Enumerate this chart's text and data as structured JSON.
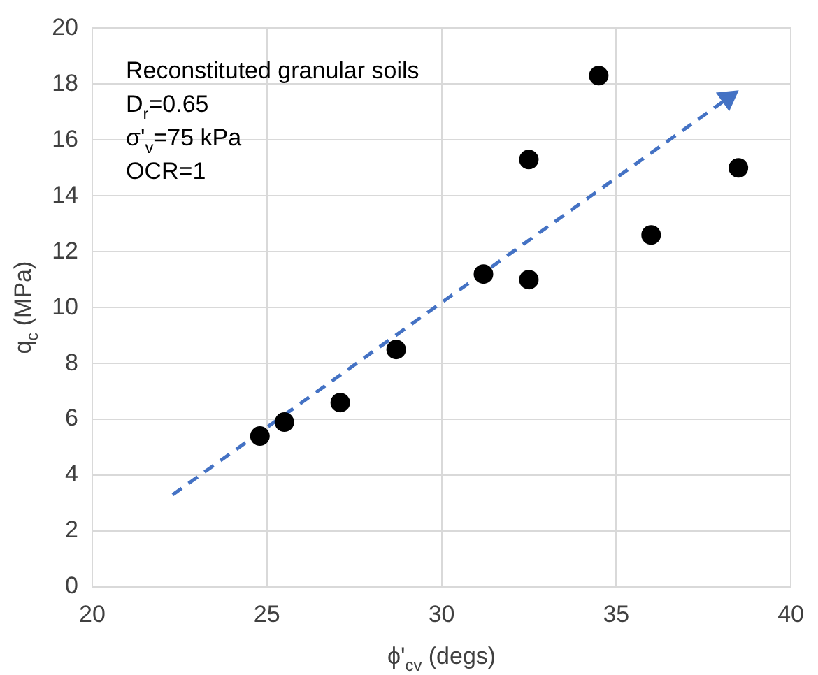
{
  "chart_data": {
    "type": "scatter",
    "xlabel": "ϕ'$_{cv}$ (degs)",
    "ylabel": "q$_{c}$ (MPa)",
    "annotations": [
      "Reconstituted granular soils",
      "D$_{r}$=0.65",
      "σ'$_{v}$=75 kPa",
      "OCR=1"
    ],
    "xlim": [
      20,
      40
    ],
    "xticks": [
      20,
      25,
      30,
      35,
      40
    ],
    "ylim": [
      0,
      20
    ],
    "yticks": [
      0,
      2,
      4,
      6,
      8,
      10,
      12,
      14,
      16,
      18,
      20
    ],
    "grid": true,
    "legend": false,
    "series": [
      {
        "color": "#000000",
        "marker": "circle",
        "x": [
          24.8,
          25.5,
          27.1,
          28.7,
          31.2,
          32.5,
          32.5,
          34.5,
          36.0,
          38.5
        ],
        "values": [
          5.4,
          5.9,
          6.6,
          8.5,
          11.2,
          15.3,
          11.0,
          18.3,
          12.6,
          15.0
        ]
      },
      {
        "type": "line",
        "color": "#4472c4",
        "line_style": "dashed",
        "x": [
          22.3,
          38.2
        ],
        "values": [
          3.3,
          17.5
        ]
      }
    ]
  }
}
